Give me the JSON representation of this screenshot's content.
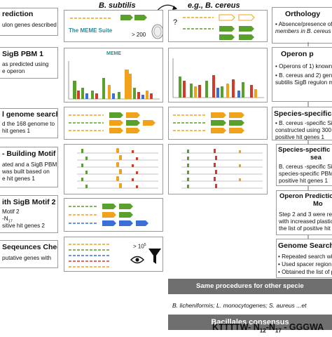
{
  "columns": {
    "left_head": "B. subtilis",
    "right_head": "e.g., B. cereus"
  },
  "steps": [
    {
      "title": "rediction",
      "lines": [
        "ulon genes described"
      ]
    },
    {
      "title": "SigB PBM 1",
      "lines": [
        "as predicted using",
        "e operon"
      ]
    },
    {
      "title": "l genome search",
      "lines": [
        "d the 168 genome to",
        "hit genes 1"
      ]
    },
    {
      "title": "- Building Motif 2",
      "lines": [
        "ated and a SigB PBM",
        "was built based on",
        "e hit genes 1"
      ]
    },
    {
      "title": "ith SigB Motif 2",
      "lines": [
        "Motif 2",
        "-N",
        "sitive hit genes 2"
      ]
    },
    {
      "title": "Seqeunces Check",
      "lines": [
        "putative genes with"
      ]
    }
  ],
  "right_steps": [
    {
      "title": "Orthology",
      "lines": [
        "• Absence/presence of",
        "  members in B. cereus"
      ]
    },
    {
      "title": "Operon p",
      "lines": [
        "• Operons of 1) known",
        "• B. cereus and 2) gene",
        "  subtilis SigB regulon m"
      ]
    },
    {
      "title": "Species-specific Si",
      "lines": [
        "• B. cereus -specific Sig",
        "  constructed using 300",
        "  positive hit genes 1"
      ]
    },
    {
      "title": "Species-specific S",
      "title2": "sea",
      "lines": [
        "B. cereus -specific Sig",
        "species-specific PBM",
        "positive hit genes 1"
      ]
    },
    {
      "title": "Operon Predictio",
      "title2": "Mo",
      "lines": [
        "Step 2 and 3 were repe",
        "with increased plastic",
        "the list of positive hit"
      ]
    },
    {
      "title": "Genome Search",
      "lines": [
        "• Repeated search with",
        "• Used spacer region N",
        "• Obtained the list of p"
      ]
    }
  ],
  "motif_2_n17": "17",
  "meme_suite": "The MEME Suite",
  "meme_logo_label": "MEME",
  "count_200": "> 200",
  "count_10_5": "> 10",
  "count_10_5_exp": "5",
  "question_mark": "?",
  "banner_same": "Same procedures for other specie",
  "species_list": "B. licheniformis; L. monocytogenes; S. aureus ...et",
  "banner_consensus": "Bacillales consensus",
  "consensus_seq": {
    "a": "KTTTTW- N",
    "b": "12",
    "c": "-N",
    "d": "17",
    "e": " - GGGWA"
  },
  "colors": {
    "green": "#5aa02c",
    "orange": "#f0a21b",
    "blue": "#3b6fd8",
    "gray_banner": "#6f6f6f",
    "red": "#d23a2a"
  }
}
